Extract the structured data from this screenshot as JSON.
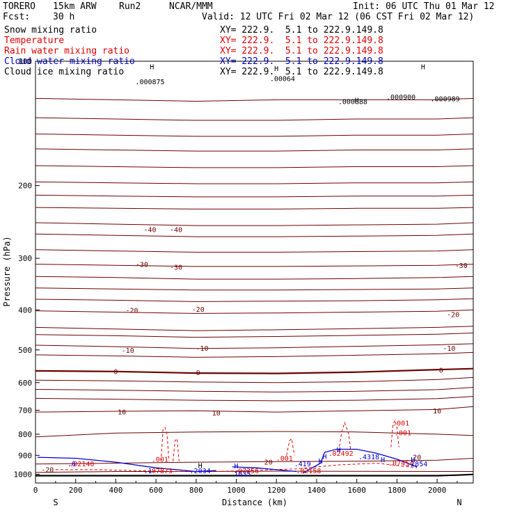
{
  "header": {
    "model": "TORERO",
    "grid": "15km ARW",
    "run": "Run2",
    "org": "NCAR/MMM",
    "init": "Init: 06 UTC Thu 01 Mar 12",
    "fcst_label": "Fcst:",
    "fcst_value": "30 h",
    "valid": "Valid: 12 UTC Fri 02 Mar 12 (06 CST Fri 02 Mar 12)"
  },
  "fields": [
    {
      "name": "Snow mixing ratio",
      "xy": "XY= 222.9.  5.1 to 222.9.149.8",
      "color": "#000000"
    },
    {
      "name": "Temperature",
      "xy": "XY= 222.9.  5.1 to 222.9.149.8",
      "color": "#e00000"
    },
    {
      "name": "Rain water mixing ratio",
      "xy": "XY= 222.9.  5.1 to 222.9.149.8",
      "color": "#e00000"
    },
    {
      "name": "Cloud water mixing ratio",
      "xy": "XY= 222.9.  5.1 to 222.9.149.8",
      "color": "#0000d0"
    },
    {
      "name": "Cloud ice mixing ratio",
      "xy": "XY= 222.9.  5.1 to 222.9.149.8",
      "color": "#000000"
    }
  ],
  "chart_data": {
    "type": "line",
    "xlabel": "Distance (km)",
    "ylabel": "Pressure (hPa)",
    "xlim": [
      0,
      2180
    ],
    "ylim": [
      1050,
      100
    ],
    "x_ticks": [
      0,
      200,
      400,
      600,
      800,
      1000,
      1200,
      1400,
      1600,
      1800,
      2000
    ],
    "y_ticks": [
      100,
      200,
      300,
      400,
      500,
      600,
      700,
      800,
      900,
      1000
    ],
    "x_end_labels": {
      "left": "S",
      "right": "N"
    },
    "colors": {
      "temperature": "#6b0000",
      "rain": "#e00000",
      "cloud_water": "#0000d0",
      "ground": "#000000"
    },
    "temperature_series": [
      {
        "x": [
          0,
          400,
          800,
          1200,
          1600,
          2000,
          2180
        ],
        "p": [
          123,
          124,
          125,
          124,
          124,
          124,
          123
        ]
      },
      {
        "x": [
          0,
          400,
          800,
          1200,
          1600,
          2000,
          2180
        ],
        "p": [
          137,
          138,
          139,
          139,
          138,
          138,
          137
        ]
      },
      {
        "x": [
          0,
          400,
          800,
          1200,
          1600,
          2000,
          2180
        ],
        "p": [
          150,
          151,
          152,
          152,
          151,
          151,
          150
        ]
      },
      {
        "x": [
          0,
          400,
          800,
          1200,
          1600,
          2000,
          2180
        ],
        "p": [
          163,
          164,
          165,
          165,
          164,
          164,
          163
        ]
      },
      {
        "x": [
          0,
          400,
          800,
          1200,
          1600,
          2000,
          2180
        ],
        "p": [
          179,
          180,
          181,
          181,
          180,
          180,
          179
        ]
      },
      {
        "x": [
          0,
          400,
          800,
          1200,
          1600,
          2000,
          2180
        ],
        "p": [
          196,
          197,
          198,
          198,
          197,
          197,
          196
        ]
      },
      {
        "x": [
          0,
          400,
          800,
          1200,
          1600,
          2000,
          2180
        ],
        "p": [
          211,
          212,
          213,
          213,
          212,
          212,
          211
        ]
      },
      {
        "x": [
          0,
          400,
          800,
          1200,
          1600,
          2000,
          2180
        ],
        "p": [
          226,
          227,
          228,
          228,
          227,
          227,
          226
        ]
      },
      {
        "x": [
          0,
          400,
          800,
          1200,
          1600,
          2000,
          2180
        ],
        "p": [
          246,
          248,
          250,
          250,
          249,
          248,
          246
        ]
      },
      {
        "x": [
          0,
          400,
          800,
          1200,
          1600,
          2000,
          2180
        ],
        "p": [
          262,
          264,
          266,
          266,
          265,
          264,
          262
        ]
      },
      {
        "x": [
          0,
          400,
          800,
          1200,
          1600,
          2000,
          2180
        ],
        "p": [
          286,
          288,
          290,
          290,
          289,
          288,
          286
        ]
      },
      {
        "x": [
          0,
          400,
          800,
          1200,
          1600,
          2000,
          2180
        ],
        "p": [
          310,
          312,
          314,
          314,
          313,
          312,
          310
        ]
      },
      {
        "x": [
          0,
          400,
          800,
          1200,
          1600,
          2000,
          2180
        ],
        "p": [
          332,
          334,
          337,
          337,
          336,
          334,
          332
        ]
      },
      {
        "x": [
          0,
          400,
          800,
          1200,
          1600,
          2000,
          2180
        ],
        "p": [
          354,
          356,
          358,
          358,
          357,
          356,
          354
        ]
      },
      {
        "x": [
          0,
          400,
          800,
          1200,
          1600,
          2000,
          2180
        ],
        "p": [
          377,
          379,
          382,
          381,
          380,
          378,
          376
        ]
      },
      {
        "x": [
          0,
          400,
          800,
          1200,
          1600,
          2000,
          2180
        ],
        "p": [
          402,
          405,
          408,
          407,
          405,
          403,
          400
        ]
      },
      {
        "x": [
          0,
          400,
          800,
          1200,
          1600,
          2000,
          2180
        ],
        "p": [
          441,
          445,
          449,
          447,
          444,
          441,
          438
        ]
      },
      {
        "x": [
          0,
          400,
          800,
          1200,
          1600,
          2000,
          2180
        ],
        "p": [
          459,
          462,
          466,
          464,
          461,
          458,
          455
        ]
      },
      {
        "x": [
          0,
          400,
          800,
          1200,
          1600,
          2000,
          2180
        ],
        "p": [
          487,
          491,
          496,
          494,
          490,
          486,
          483
        ]
      },
      {
        "x": [
          0,
          400,
          800,
          1200,
          1600,
          2000,
          2180
        ],
        "p": [
          514,
          517,
          521,
          519,
          515,
          511,
          507
        ]
      },
      {
        "x": [
          0,
          400,
          800,
          1200,
          1600,
          2000,
          2180
        ],
        "p": [
          562,
          564,
          569,
          570,
          566,
          558,
          555
        ]
      },
      {
        "x": [
          0,
          400,
          800,
          1200,
          1600,
          2000,
          2180
        ],
        "p": [
          592,
          594,
          598,
          600,
          597,
          590,
          583
        ]
      },
      {
        "x": [
          0,
          400,
          800,
          1200,
          1600,
          2000,
          2180
        ],
        "p": [
          623,
          626,
          630,
          632,
          630,
          624,
          616
        ]
      },
      {
        "x": [
          0,
          400,
          800,
          1200,
          1600,
          2000,
          2180
        ],
        "p": [
          655,
          658,
          662,
          664,
          662,
          656,
          648
        ]
      },
      {
        "x": [
          0,
          400,
          800,
          1200,
          1600,
          2000,
          2180
        ],
        "p": [
          707,
          704,
          702,
          707,
          702,
          697,
          686
        ]
      },
      {
        "x": [
          0,
          400,
          800,
          1200,
          1600,
          2000,
          2180
        ],
        "p": [
          812,
          795,
          790,
          788,
          790,
          800,
          806
        ]
      },
      {
        "x": [
          0,
          400,
          800,
          1200,
          1600,
          2000,
          2180
        ],
        "p": [
          945,
          940,
          935,
          932,
          930,
          925,
          915
        ]
      },
      {
        "x": [
          0,
          400,
          800,
          1200,
          1600,
          2000,
          2180
        ],
        "p": [
          990,
          985,
          985,
          983,
          984,
          985,
          985
        ]
      }
    ],
    "ground_series": {
      "x": [
        0,
        500,
        1000,
        1500,
        2000,
        2100,
        2180
      ],
      "p": [
        1008,
        1008,
        1008,
        1008,
        1008,
        1005,
        1001
      ]
    },
    "rain_contours": [
      {
        "x": [
          625,
          635,
          645,
          655,
          665
        ],
        "p": [
          930,
          780,
          770,
          800,
          930
        ]
      },
      {
        "x": [
          685,
          695,
          705,
          715
        ],
        "p": [
          930,
          830,
          820,
          930
        ]
      },
      {
        "x": [
          1510,
          1525,
          1540,
          1560,
          1570
        ],
        "p": [
          880,
          790,
          750,
          800,
          880
        ]
      },
      {
        "x": [
          1770,
          1780,
          1790,
          1800,
          1810
        ],
        "p": [
          860,
          760,
          740,
          770,
          860
        ]
      },
      {
        "x": [
          1250,
          1265,
          1275,
          1290
        ],
        "p": [
          900,
          830,
          820,
          900
        ]
      },
      {
        "x": [
          100,
          300,
          500,
          700,
          900,
          1100,
          1300,
          1500,
          1700,
          1900
        ],
        "p": [
          975,
          975,
          980,
          985,
          985,
          978,
          970,
          950,
          940,
          965
        ]
      }
    ],
    "cloud_water_contours": [
      {
        "x": [
          10,
          200,
          400,
          600,
          800,
          900
        ],
        "p": [
          910,
          915,
          935,
          965,
          985,
          980
        ]
      },
      {
        "x": [
          1330,
          1420,
          1440,
          1500,
          1600,
          1700,
          1800,
          1900
        ],
        "p": [
          995,
          940,
          885,
          870,
          870,
          890,
          920,
          960
        ]
      },
      {
        "x": [
          980,
          1100,
          1200,
          1300
        ],
        "p": [
          960,
          965,
          975,
          985
        ]
      }
    ],
    "contour_labels": [
      {
        "text": ".000875",
        "x": 570,
        "p": 112,
        "color": "#000000"
      },
      {
        "text": ".00064",
        "x": 1230,
        "p": 110,
        "color": "#000000"
      },
      {
        "text": ".000888",
        "x": 1580,
        "p": 125,
        "color": "#000000"
      },
      {
        "text": ".000900",
        "x": 1820,
        "p": 122,
        "color": "#000000"
      },
      {
        "text": ".000989",
        "x": 2040,
        "p": 123,
        "color": "#000000"
      },
      {
        "text": "-40",
        "x": 570,
        "p": 255,
        "color": "#6b0000"
      },
      {
        "text": "-40",
        "x": 700,
        "p": 255,
        "color": "#6b0000"
      },
      {
        "text": "-30",
        "x": 530,
        "p": 310,
        "color": "#6b0000"
      },
      {
        "text": "-30",
        "x": 700,
        "p": 315,
        "color": "#6b0000"
      },
      {
        "text": "-30",
        "x": 2120,
        "p": 312,
        "color": "#6b0000"
      },
      {
        "text": "-20",
        "x": 480,
        "p": 400,
        "color": "#6b0000"
      },
      {
        "text": "-20",
        "x": 810,
        "p": 398,
        "color": "#6b0000"
      },
      {
        "text": "-20",
        "x": 2080,
        "p": 410,
        "color": "#6b0000"
      },
      {
        "text": "-10",
        "x": 460,
        "p": 500,
        "color": "#6b0000"
      },
      {
        "text": "-10",
        "x": 830,
        "p": 495,
        "color": "#6b0000"
      },
      {
        "text": "-10",
        "x": 2060,
        "p": 495,
        "color": "#6b0000"
      },
      {
        "text": "0",
        "x": 400,
        "p": 563,
        "color": "#6b0000"
      },
      {
        "text": "0",
        "x": 810,
        "p": 567,
        "color": "#6b0000"
      },
      {
        "text": "0",
        "x": 2020,
        "p": 559,
        "color": "#6b0000"
      },
      {
        "text": "10",
        "x": 430,
        "p": 706,
        "color": "#6b0000"
      },
      {
        "text": "10",
        "x": 900,
        "p": 709,
        "color": "#6b0000"
      },
      {
        "text": "10",
        "x": 2000,
        "p": 702,
        "color": "#6b0000"
      },
      {
        "text": "20",
        "x": 1160,
        "p": 932,
        "color": "#6b0000"
      },
      {
        "text": "20",
        "x": 1900,
        "p": 908,
        "color": "#6b0000"
      },
      {
        "text": "-20",
        "x": 60,
        "p": 973,
        "color": "#6b0000"
      },
      {
        "text": ".001",
        "x": 1820,
        "p": 751,
        "color": "#e00000"
      },
      {
        "text": ".001",
        "x": 1830,
        "p": 792,
        "color": "#e00000"
      },
      {
        "text": ".001",
        "x": 620,
        "p": 918,
        "color": "#e00000"
      },
      {
        "text": ".001",
        "x": 1240,
        "p": 913,
        "color": "#e00000"
      },
      {
        "text": ".02492",
        "x": 1520,
        "p": 888,
        "color": "#e00000"
      },
      {
        "text": ".07454",
        "x": 1820,
        "p": 939,
        "color": "#e00000"
      },
      {
        "text": ".07873",
        "x": 620,
        "p": 980,
        "color": "#e00000"
      },
      {
        "text": ".07356",
        "x": 1050,
        "p": 980,
        "color": "#e00000"
      },
      {
        "text": ".02158",
        "x": 1360,
        "p": 980,
        "color": "#e00000"
      },
      {
        "text": ".02140",
        "x": 230,
        "p": 941,
        "color": "#e00000"
      },
      {
        "text": ".4318",
        "x": 1660,
        "p": 906,
        "color": "#0000d0"
      },
      {
        "text": ".2854",
        "x": 1900,
        "p": 941,
        "color": "#0000d0"
      },
      {
        "text": ".419",
        "x": 1330,
        "p": 941,
        "color": "#0000d0"
      },
      {
        "text": ".1035",
        "x": 1020,
        "p": 996,
        "color": "#0000d0"
      },
      {
        "text": ".2034",
        "x": 820,
        "p": 980,
        "color": "#0000d0"
      },
      {
        "text": ".1",
        "x": 560,
        "p": 980,
        "color": "#0000d0"
      },
      {
        "text": ".6",
        "x": 180,
        "p": 941,
        "color": "#0000d0"
      }
    ],
    "h_marks": [
      {
        "x": 1510,
        "p": 872
      },
      {
        "x": 1880,
        "p": 921
      },
      {
        "x": 1420,
        "p": 927
      },
      {
        "x": 1730,
        "p": 920
      },
      {
        "x": 1440,
        "p": 905
      },
      {
        "x": 1000,
        "p": 953
      },
      {
        "x": 820,
        "p": 952
      },
      {
        "x": 1600,
        "p": 124
      },
      {
        "x": 1930,
        "p": 103
      },
      {
        "x": 1200,
        "p": 104
      },
      {
        "x": 580,
        "p": 103
      }
    ]
  }
}
